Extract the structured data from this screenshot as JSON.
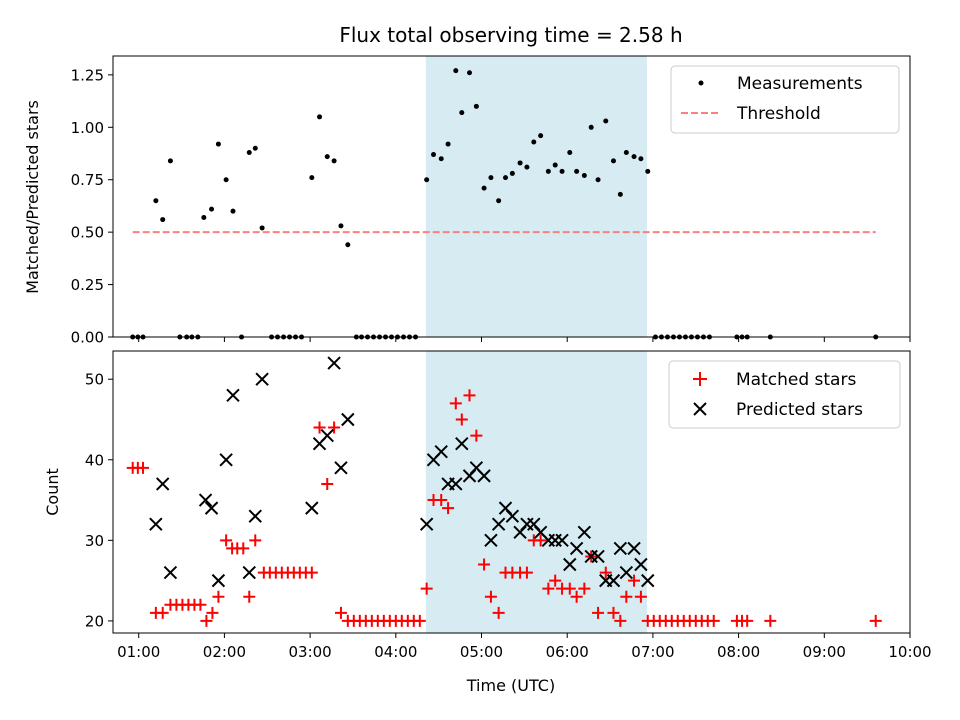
{
  "chart_data": [
    {
      "type": "scatter",
      "title": "Flux total observing time = 2.58 h",
      "ylabel": "Matched/Predicted stars",
      "xlabel": "",
      "xlim": [
        0.7,
        10.0
      ],
      "ylim": [
        0,
        1.34
      ],
      "x_ticks": [
        1,
        2,
        3,
        4,
        5,
        6,
        7,
        8,
        9,
        10
      ],
      "y_ticks": [
        0.0,
        0.25,
        0.5,
        0.75,
        1.0,
        1.25
      ],
      "y_tick_labels": [
        "0.00",
        "0.25",
        "0.50",
        "0.75",
        "1.00",
        "1.25"
      ],
      "grid": false,
      "legend_position": "top-right",
      "shaded_interval": {
        "start": 4.35,
        "end": 6.93,
        "color": "#add8e6"
      },
      "series": [
        {
          "name": "Measurements",
          "kind": "scatter",
          "marker": "dot",
          "color": "#000000",
          "points": [
            [
              0.93,
              0
            ],
            [
              0.99,
              0
            ],
            [
              1.05,
              0
            ],
            [
              1.2,
              0.65
            ],
            [
              1.28,
              0.56
            ],
            [
              1.37,
              0.84
            ],
            [
              1.48,
              0
            ],
            [
              1.56,
              0
            ],
            [
              1.62,
              0
            ],
            [
              1.69,
              0
            ],
            [
              1.76,
              0.57
            ],
            [
              1.85,
              0.61
            ],
            [
              1.93,
              0.92
            ],
            [
              2.02,
              0.75
            ],
            [
              2.1,
              0.6
            ],
            [
              2.2,
              0
            ],
            [
              2.29,
              0.88
            ],
            [
              2.36,
              0.9
            ],
            [
              2.44,
              0.52
            ],
            [
              2.55,
              0
            ],
            [
              2.62,
              0
            ],
            [
              2.69,
              0
            ],
            [
              2.76,
              0
            ],
            [
              2.83,
              0
            ],
            [
              2.9,
              0
            ],
            [
              3.02,
              0.76
            ],
            [
              3.11,
              1.05
            ],
            [
              3.2,
              0.86
            ],
            [
              3.28,
              0.84
            ],
            [
              3.36,
              0.53
            ],
            [
              3.44,
              0.44
            ],
            [
              3.54,
              0
            ],
            [
              3.6,
              0
            ],
            [
              3.67,
              0
            ],
            [
              3.74,
              0
            ],
            [
              3.81,
              0
            ],
            [
              3.88,
              0
            ],
            [
              3.95,
              0
            ],
            [
              4.02,
              0
            ],
            [
              4.09,
              0
            ],
            [
              4.16,
              0
            ],
            [
              4.23,
              0
            ],
            [
              4.36,
              0.75
            ],
            [
              4.44,
              0.87
            ],
            [
              4.53,
              0.85
            ],
            [
              4.61,
              0.92
            ],
            [
              4.7,
              1.27
            ],
            [
              4.77,
              1.07
            ],
            [
              4.86,
              1.26
            ],
            [
              4.94,
              1.1
            ],
            [
              5.03,
              0.71
            ],
            [
              5.11,
              0.76
            ],
            [
              5.2,
              0.65
            ],
            [
              5.28,
              0.76
            ],
            [
              5.36,
              0.78
            ],
            [
              5.45,
              0.83
            ],
            [
              5.53,
              0.81
            ],
            [
              5.61,
              0.93
            ],
            [
              5.69,
              0.96
            ],
            [
              5.78,
              0.79
            ],
            [
              5.86,
              0.82
            ],
            [
              5.94,
              0.79
            ],
            [
              6.03,
              0.88
            ],
            [
              6.11,
              0.79
            ],
            [
              6.2,
              0.77
            ],
            [
              6.28,
              1.0
            ],
            [
              6.36,
              0.75
            ],
            [
              6.45,
              1.03
            ],
            [
              6.54,
              0.84
            ],
            [
              6.62,
              0.68
            ],
            [
              6.69,
              0.88
            ],
            [
              6.78,
              0.86
            ],
            [
              6.86,
              0.85
            ],
            [
              6.94,
              0.79
            ],
            [
              7.03,
              0
            ],
            [
              7.1,
              0
            ],
            [
              7.17,
              0
            ],
            [
              7.24,
              0
            ],
            [
              7.31,
              0
            ],
            [
              7.38,
              0
            ],
            [
              7.45,
              0
            ],
            [
              7.52,
              0
            ],
            [
              7.59,
              0
            ],
            [
              7.66,
              0
            ],
            [
              7.98,
              0
            ],
            [
              8.04,
              0
            ],
            [
              8.1,
              0
            ],
            [
              8.37,
              0
            ],
            [
              9.6,
              0
            ]
          ]
        },
        {
          "name": "Threshold",
          "kind": "line",
          "style": "dashed",
          "color": "#ff7f7f",
          "x": [
            0.93,
            9.6
          ],
          "y": [
            0.5,
            0.5
          ]
        }
      ]
    },
    {
      "type": "scatter",
      "title": "",
      "ylabel": "Count",
      "xlabel": "Time (UTC)",
      "xlim": [
        0.7,
        10.0
      ],
      "ylim": [
        18.5,
        53.5
      ],
      "x_ticks": [
        1,
        2,
        3,
        4,
        5,
        6,
        7,
        8,
        9,
        10
      ],
      "x_tick_labels": [
        "01:00",
        "02:00",
        "03:00",
        "04:00",
        "05:00",
        "06:00",
        "07:00",
        "08:00",
        "09:00",
        "10:00"
      ],
      "y_ticks": [
        20,
        30,
        40,
        50
      ],
      "y_tick_labels": [
        "20",
        "30",
        "40",
        "50"
      ],
      "grid": false,
      "legend_position": "top-right",
      "shaded_interval": {
        "start": 4.35,
        "end": 6.93,
        "color": "#add8e6"
      },
      "series": [
        {
          "name": "Matched stars",
          "kind": "scatter",
          "marker": "plus",
          "color": "#ff0000",
          "points": [
            [
              0.93,
              39
            ],
            [
              0.99,
              39
            ],
            [
              1.05,
              39
            ],
            [
              1.2,
              21
            ],
            [
              1.28,
              21
            ],
            [
              1.37,
              22
            ],
            [
              1.44,
              22
            ],
            [
              1.51,
              22
            ],
            [
              1.58,
              22
            ],
            [
              1.65,
              22
            ],
            [
              1.72,
              22
            ],
            [
              1.79,
              20
            ],
            [
              1.86,
              21
            ],
            [
              1.93,
              23
            ],
            [
              2.02,
              30
            ],
            [
              2.09,
              29
            ],
            [
              2.15,
              29
            ],
            [
              2.22,
              29
            ],
            [
              2.29,
              23
            ],
            [
              2.36,
              30
            ],
            [
              2.46,
              26
            ],
            [
              2.53,
              26
            ],
            [
              2.6,
              26
            ],
            [
              2.67,
              26
            ],
            [
              2.74,
              26
            ],
            [
              2.81,
              26
            ],
            [
              2.88,
              26
            ],
            [
              2.95,
              26
            ],
            [
              3.02,
              26
            ],
            [
              3.11,
              44
            ],
            [
              3.2,
              37
            ],
            [
              3.28,
              44
            ],
            [
              3.36,
              21
            ],
            [
              3.44,
              20
            ],
            [
              3.51,
              20
            ],
            [
              3.58,
              20
            ],
            [
              3.65,
              20
            ],
            [
              3.72,
              20
            ],
            [
              3.79,
              20
            ],
            [
              3.86,
              20
            ],
            [
              3.93,
              20
            ],
            [
              4.0,
              20
            ],
            [
              4.07,
              20
            ],
            [
              4.14,
              20
            ],
            [
              4.21,
              20
            ],
            [
              4.28,
              20
            ],
            [
              4.36,
              24
            ],
            [
              4.44,
              35
            ],
            [
              4.53,
              35
            ],
            [
              4.61,
              34
            ],
            [
              4.7,
              47
            ],
            [
              4.77,
              45
            ],
            [
              4.86,
              48
            ],
            [
              4.94,
              43
            ],
            [
              5.03,
              27
            ],
            [
              5.11,
              23
            ],
            [
              5.2,
              21
            ],
            [
              5.28,
              26
            ],
            [
              5.36,
              26
            ],
            [
              5.45,
              26
            ],
            [
              5.53,
              26
            ],
            [
              5.61,
              30
            ],
            [
              5.69,
              30
            ],
            [
              5.78,
              24
            ],
            [
              5.86,
              25
            ],
            [
              5.94,
              24
            ],
            [
              6.03,
              24
            ],
            [
              6.11,
              23
            ],
            [
              6.2,
              24
            ],
            [
              6.28,
              28
            ],
            [
              6.36,
              21
            ],
            [
              6.45,
              26
            ],
            [
              6.54,
              21
            ],
            [
              6.62,
              20
            ],
            [
              6.69,
              23
            ],
            [
              6.78,
              25
            ],
            [
              6.86,
              23
            ],
            [
              6.94,
              20
            ],
            [
              7.01,
              20
            ],
            [
              7.08,
              20
            ],
            [
              7.15,
              20
            ],
            [
              7.22,
              20
            ],
            [
              7.29,
              20
            ],
            [
              7.36,
              20
            ],
            [
              7.43,
              20
            ],
            [
              7.5,
              20
            ],
            [
              7.57,
              20
            ],
            [
              7.64,
              20
            ],
            [
              7.71,
              20
            ],
            [
              7.98,
              20
            ],
            [
              8.04,
              20
            ],
            [
              8.1,
              20
            ],
            [
              8.37,
              20
            ],
            [
              9.6,
              20
            ]
          ]
        },
        {
          "name": "Predicted stars",
          "kind": "scatter",
          "marker": "x",
          "color": "#000000",
          "points": [
            [
              1.2,
              32
            ],
            [
              1.28,
              37
            ],
            [
              1.37,
              26
            ],
            [
              1.78,
              35
            ],
            [
              1.85,
              34
            ],
            [
              1.93,
              25
            ],
            [
              2.02,
              40
            ],
            [
              2.1,
              48
            ],
            [
              2.29,
              26
            ],
            [
              2.36,
              33
            ],
            [
              2.44,
              50
            ],
            [
              3.02,
              34
            ],
            [
              3.11,
              42
            ],
            [
              3.2,
              43
            ],
            [
              3.28,
              52
            ],
            [
              3.36,
              39
            ],
            [
              3.44,
              45
            ],
            [
              4.36,
              32
            ],
            [
              4.44,
              40
            ],
            [
              4.53,
              41
            ],
            [
              4.61,
              37
            ],
            [
              4.7,
              37
            ],
            [
              4.77,
              42
            ],
            [
              4.86,
              38
            ],
            [
              4.94,
              39
            ],
            [
              5.03,
              38
            ],
            [
              5.11,
              30
            ],
            [
              5.2,
              32
            ],
            [
              5.28,
              34
            ],
            [
              5.36,
              33
            ],
            [
              5.45,
              31
            ],
            [
              5.53,
              32
            ],
            [
              5.61,
              32
            ],
            [
              5.69,
              31
            ],
            [
              5.78,
              30
            ],
            [
              5.86,
              30
            ],
            [
              5.94,
              30
            ],
            [
              6.03,
              27
            ],
            [
              6.11,
              29
            ],
            [
              6.2,
              31
            ],
            [
              6.28,
              28
            ],
            [
              6.36,
              28
            ],
            [
              6.45,
              25
            ],
            [
              6.54,
              25
            ],
            [
              6.62,
              29
            ],
            [
              6.69,
              26
            ],
            [
              6.78,
              29
            ],
            [
              6.86,
              27
            ],
            [
              6.94,
              25
            ]
          ]
        }
      ]
    }
  ]
}
